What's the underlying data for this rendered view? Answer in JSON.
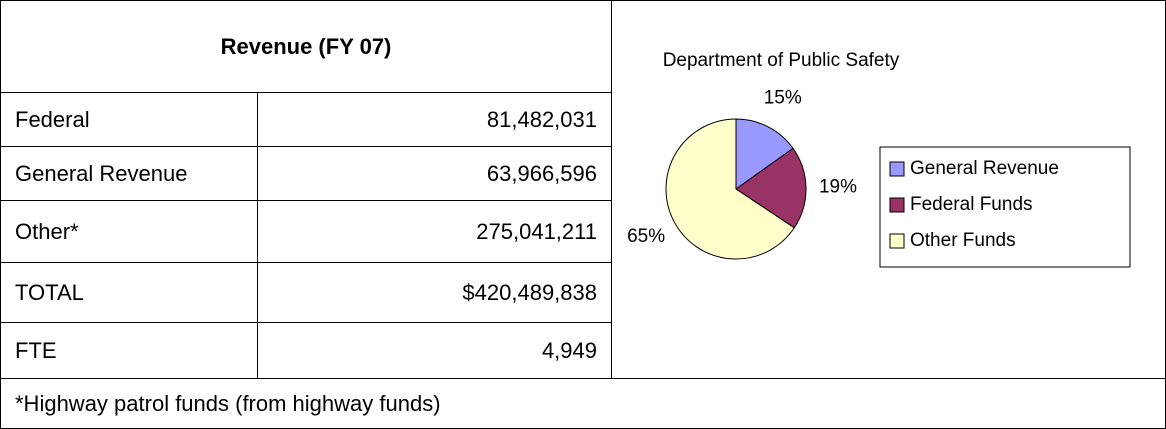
{
  "table": {
    "title": "Revenue (FY 07)",
    "rows": [
      [
        "Federal",
        "81,482,031"
      ],
      [
        "General Revenue",
        "63,966,596"
      ],
      [
        "Other*",
        "275,041,211"
      ],
      [
        "TOTAL",
        "$420,489,838"
      ],
      [
        "FTE",
        "4,949"
      ]
    ],
    "footnote": "*Highway patrol funds (from highway funds)"
  },
  "chart_data": {
    "type": "pie",
    "title": "Department of Public Safety",
    "categories": [
      "General Revenue",
      "Federal Funds",
      "Other Funds"
    ],
    "values": [
      15,
      19,
      65
    ],
    "value_labels": [
      "15%",
      "19%",
      "65%"
    ],
    "colors": [
      "#9999ff",
      "#993366",
      "#ffffcc"
    ],
    "legend": "right"
  }
}
